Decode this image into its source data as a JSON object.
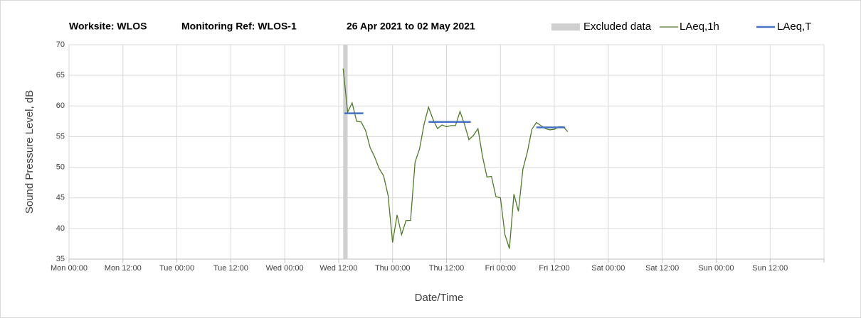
{
  "chart_data": {
    "type": "line",
    "title": [
      "Worksite: WLOS",
      "Monitoring Ref: WLOS-1",
      "26 Apr 2021 to 02 May 2021"
    ],
    "xlabel": "Date/Time",
    "ylabel": "Sound Pressure Level, dB",
    "xlim": [
      0,
      168
    ],
    "xticks": [
      {
        "value": 0,
        "label": "Mon 00:00"
      },
      {
        "value": 12,
        "label": "Mon 12:00"
      },
      {
        "value": 24,
        "label": "Tue 00:00"
      },
      {
        "value": 36,
        "label": "Tue 12:00"
      },
      {
        "value": 48,
        "label": "Wed 00:00"
      },
      {
        "value": 60,
        "label": "Wed 12:00"
      },
      {
        "value": 72,
        "label": "Thu 00:00"
      },
      {
        "value": 84,
        "label": "Thu 12:00"
      },
      {
        "value": 96,
        "label": "Fri 00:00"
      },
      {
        "value": 108,
        "label": "Fri 12:00"
      },
      {
        "value": 120,
        "label": "Sat 00:00"
      },
      {
        "value": 132,
        "label": "Sat 12:00"
      },
      {
        "value": 144,
        "label": "Sun 00:00"
      },
      {
        "value": 156,
        "label": "Sun 12:00"
      },
      {
        "value": 168,
        "label": ""
      }
    ],
    "ylim": [
      35,
      70
    ],
    "yticks": [
      35,
      40,
      45,
      50,
      55,
      60,
      65,
      70
    ],
    "grid": true,
    "excluded": {
      "name": "Excluded data",
      "color": "#d0d0d0",
      "x": [
        61,
        62
      ]
    },
    "series": [
      {
        "name": "LAeq,1h",
        "color": "#4f7a28",
        "x": [
          61,
          62,
          63,
          64,
          65,
          66,
          67,
          68,
          69,
          70,
          71,
          72,
          73,
          74,
          75,
          76,
          77,
          78,
          79,
          80,
          81,
          82,
          83,
          84,
          85,
          86,
          87,
          88,
          89,
          90,
          91,
          92,
          93,
          94,
          95,
          96,
          97,
          98,
          99,
          100,
          101,
          102,
          103,
          104,
          105,
          106,
          107,
          108,
          109,
          110,
          111
        ],
        "values": [
          66.1,
          59,
          60.5,
          57.5,
          57.4,
          56,
          53.2,
          51.7,
          49.8,
          48.6,
          45.4,
          37.7,
          42.2,
          39,
          41.3,
          41.3,
          50.8,
          53,
          57,
          59.8,
          57.8,
          56.3,
          56.9,
          56.6,
          56.8,
          56.8,
          59.1,
          57,
          54.5,
          55.2,
          56.3,
          51.8,
          48.4,
          48.5,
          45.2,
          45,
          39,
          36.7,
          45.6,
          42.8,
          49.7,
          52.5,
          56.2,
          57.3,
          56.8,
          56.3,
          56.1,
          56.2,
          56.6,
          56.6,
          55.8
        ]
      }
    ],
    "levels": {
      "name": "LAeq,T",
      "color": "#4472c4",
      "segments": [
        {
          "x": [
            61.3,
            65.5
          ],
          "value": 58.8
        },
        {
          "x": [
            80,
            89.4
          ],
          "value": 57.4
        },
        {
          "x": [
            104,
            110.4
          ],
          "value": 56.5
        }
      ]
    }
  }
}
